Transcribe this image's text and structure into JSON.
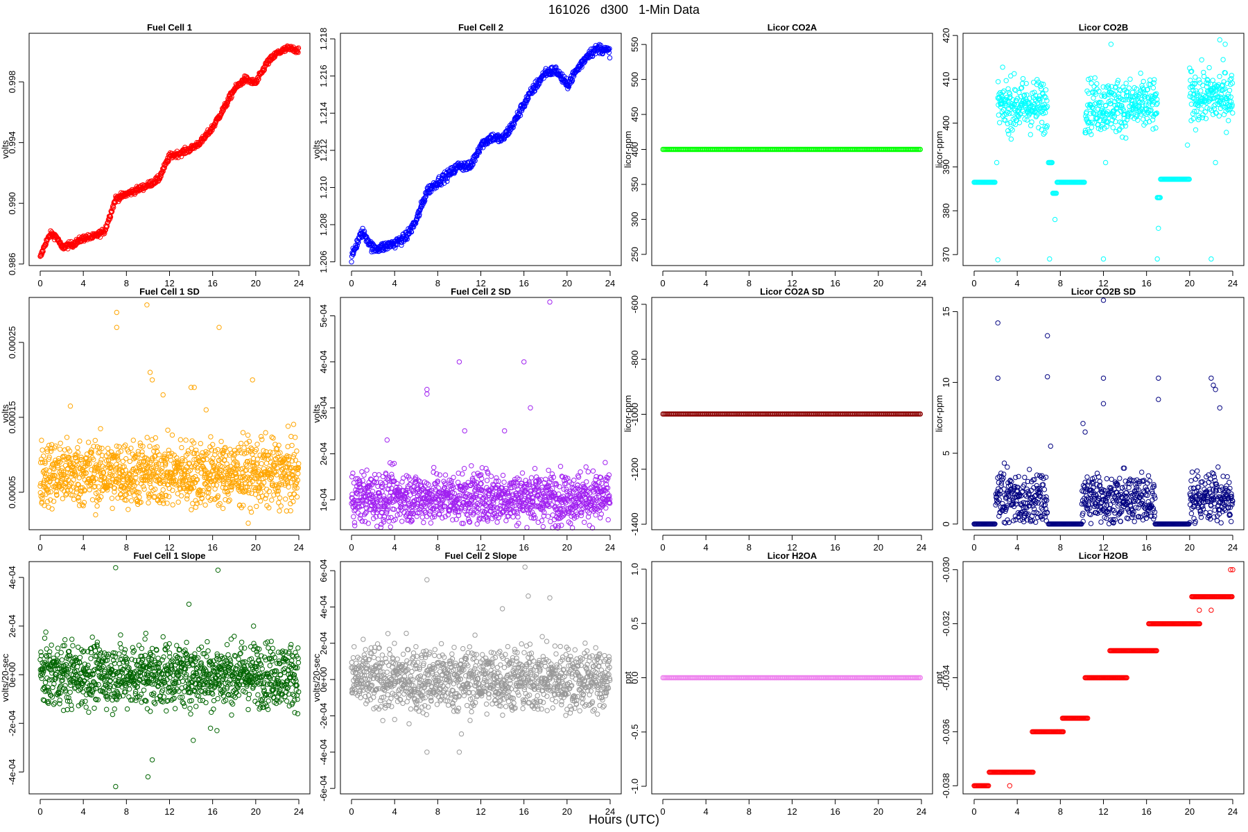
{
  "figure": {
    "title": "161026   d300   1-Min Data",
    "xlabel": "Hours (UTC)"
  },
  "chart_data": [
    {
      "type": "scatter",
      "title": "Fuel Cell 1",
      "ylabel": "volts",
      "color": "#ff0000",
      "marker": "circle-open",
      "xlim": [
        0,
        24
      ],
      "xticks": [
        0,
        4,
        8,
        12,
        16,
        20,
        24
      ],
      "ylim": [
        0.9859,
        1.0012
      ],
      "yticks": [
        0.986,
        0.99,
        0.994,
        0.998
      ],
      "ytick_labels": [
        "0.986",
        "0.990",
        "0.994",
        "0.998"
      ],
      "pattern": "trend",
      "trend": [
        [
          0,
          0.9864
        ],
        [
          0.5,
          0.9874
        ],
        [
          1,
          0.988
        ],
        [
          1.5,
          0.9878
        ],
        [
          2,
          0.9871
        ],
        [
          3,
          0.9873
        ],
        [
          4,
          0.9877
        ],
        [
          5,
          0.9878
        ],
        [
          6,
          0.9882
        ],
        [
          7,
          0.9903
        ],
        [
          8,
          0.9906
        ],
        [
          10,
          0.9912
        ],
        [
          11,
          0.9916
        ],
        [
          12,
          0.9931
        ],
        [
          13,
          0.9933
        ],
        [
          14,
          0.9936
        ],
        [
          15,
          0.9941
        ],
        [
          16,
          0.995
        ],
        [
          17,
          0.9962
        ],
        [
          18,
          0.9975
        ],
        [
          19,
          0.9982
        ],
        [
          20,
          0.9979
        ],
        [
          21,
          0.9992
        ],
        [
          22,
          0.9999
        ],
        [
          23,
          1.0002
        ],
        [
          24,
          1.0001
        ]
      ],
      "noise": 0.0002
    },
    {
      "type": "scatter",
      "title": "Fuel Cell 2",
      "ylabel": "volts",
      "color": "#0000ff",
      "marker": "circle-open",
      "xlim": [
        0,
        24
      ],
      "xticks": [
        0,
        4,
        8,
        12,
        16,
        20,
        24
      ],
      "ylim": [
        1.2058,
        1.2183
      ],
      "yticks": [
        1.206,
        1.208,
        1.21,
        1.212,
        1.214,
        1.216,
        1.218
      ],
      "ytick_labels": [
        "1.206",
        "1.208",
        "1.210",
        "1.212",
        "1.214",
        "1.216",
        "1.218"
      ],
      "pattern": "trend",
      "trend": [
        [
          0,
          1.2062
        ],
        [
          0.5,
          1.207
        ],
        [
          1,
          1.2076
        ],
        [
          1.5,
          1.2072
        ],
        [
          2,
          1.2067
        ],
        [
          3,
          1.2068
        ],
        [
          4,
          1.207
        ],
        [
          5,
          1.2073
        ],
        [
          6,
          1.2082
        ],
        [
          7,
          1.2098
        ],
        [
          8,
          1.2103
        ],
        [
          9,
          1.2107
        ],
        [
          10,
          1.2112
        ],
        [
          11,
          1.2111
        ],
        [
          12,
          1.2123
        ],
        [
          13,
          1.2127
        ],
        [
          14,
          1.2126
        ],
        [
          15,
          1.2134
        ],
        [
          16,
          1.2145
        ],
        [
          17,
          1.2154
        ],
        [
          18,
          1.2162
        ],
        [
          19,
          1.2163
        ],
        [
          20,
          1.2155
        ],
        [
          21,
          1.2164
        ],
        [
          22,
          1.2172
        ],
        [
          23,
          1.2175
        ],
        [
          24,
          1.2173
        ]
      ],
      "noise": 0.00025
    },
    {
      "type": "scatter",
      "title": "Licor CO2A",
      "ylabel": "licor-ppm",
      "color": "#00ff00",
      "marker": "circle-open",
      "xlim": [
        0,
        24
      ],
      "xticks": [
        0,
        4,
        8,
        12,
        16,
        20,
        24
      ],
      "ylim": [
        234,
        566
      ],
      "yticks": [
        250,
        300,
        350,
        400,
        450,
        500,
        550
      ],
      "ytick_labels": [
        "250",
        "300",
        "350",
        "400",
        "450",
        "500",
        "550"
      ],
      "pattern": "const",
      "value": 400
    },
    {
      "type": "scatter",
      "title": "Licor CO2B",
      "ylabel": "licor-ppm",
      "color": "#00ffff",
      "marker": "circle-open",
      "xlim": [
        0,
        24
      ],
      "xticks": [
        0,
        4,
        8,
        12,
        16,
        20,
        24
      ],
      "ylim": [
        367.5,
        420.5
      ],
      "yticks": [
        370,
        380,
        390,
        400,
        410,
        420
      ],
      "ytick_labels": [
        "370",
        "380",
        "390",
        "400",
        "410",
        "420"
      ],
      "pattern": "bands",
      "noise": 3,
      "bands": [
        [
          0,
          2,
          386.5,
          0
        ],
        [
          2.2,
          6.8,
          404,
          3
        ],
        [
          6.9,
          7.3,
          391,
          0
        ],
        [
          7.3,
          7.7,
          384,
          0
        ],
        [
          7.7,
          10.3,
          386.5,
          0
        ],
        [
          10.3,
          17,
          404,
          3.5
        ],
        [
          17,
          17.3,
          383,
          0
        ],
        [
          17.3,
          20,
          387.2,
          0
        ],
        [
          20,
          24,
          406,
          3
        ]
      ],
      "outliers": [
        [
          2.2,
          368.8
        ],
        [
          7,
          369
        ],
        [
          12,
          369
        ],
        [
          17,
          369
        ],
        [
          22,
          369
        ],
        [
          12.7,
          418
        ],
        [
          22.8,
          419
        ],
        [
          23.3,
          418
        ],
        [
          7.5,
          378
        ],
        [
          17.1,
          376
        ],
        [
          2.1,
          391
        ],
        [
          12.2,
          391
        ],
        [
          22.4,
          391
        ],
        [
          19.8,
          395
        ]
      ]
    },
    {
      "type": "scatter",
      "title": "Fuel Cell 1 SD",
      "ylabel": "volts",
      "color": "#ffa500",
      "marker": "circle-open",
      "xlim": [
        0,
        24
      ],
      "xticks": [
        0,
        4,
        8,
        12,
        16,
        20,
        24
      ],
      "ylim": [
        0.0,
        0.00031
      ],
      "yticks": [
        5e-05,
        0.00015,
        0.00025
      ],
      "ytick_labels": [
        "0.00005",
        "0.00015",
        "0.00025"
      ],
      "pattern": "noise",
      "base": 7.5e-05,
      "noise": 2.2e-05,
      "outliers": [
        [
          7.1,
          0.00029
        ],
        [
          7.1,
          0.00027
        ],
        [
          9.9,
          0.0003
        ],
        [
          10.2,
          0.00021
        ],
        [
          10.4,
          0.0002
        ],
        [
          11.4,
          0.00018
        ],
        [
          14,
          0.00019
        ],
        [
          14.3,
          0.00019
        ],
        [
          16.6,
          0.00027
        ],
        [
          19.7,
          0.0002
        ],
        [
          2.8,
          0.000165
        ],
        [
          15.4,
          0.00016
        ]
      ]
    },
    {
      "type": "scatter",
      "title": "Fuel Cell 2 SD",
      "ylabel": "volts",
      "color": "#a020f0",
      "marker": "circle-open",
      "xlim": [
        0,
        24
      ],
      "xticks": [
        0,
        4,
        8,
        12,
        16,
        20,
        24
      ],
      "ylim": [
        3.5e-05,
        0.00054
      ],
      "yticks": [
        0.0001,
        0.0002,
        0.0003,
        0.0004,
        0.0005
      ],
      "ytick_labels": [
        "1e-04",
        "2e-04",
        "3e-04",
        "4e-04",
        "5e-04"
      ],
      "pattern": "noise",
      "base": 0.000105,
      "noise": 2.8e-05,
      "outliers": [
        [
          18.4,
          0.00053
        ],
        [
          10,
          0.0004
        ],
        [
          16,
          0.0004
        ],
        [
          7,
          0.00034
        ],
        [
          7,
          0.00033
        ],
        [
          16.6,
          0.0003
        ],
        [
          10.5,
          0.00025
        ],
        [
          14.2,
          0.00025
        ],
        [
          3.3,
          0.00023
        ]
      ]
    },
    {
      "type": "scatter",
      "title": "Licor CO2A SD",
      "ylabel": "licor-ppm",
      "color": "#8b0000",
      "marker": "circle-open",
      "xlim": [
        0,
        24
      ],
      "xticks": [
        0,
        4,
        8,
        12,
        16,
        20,
        24
      ],
      "ylim": [
        -1420,
        -575
      ],
      "yticks": [
        -1400,
        -1200,
        -1000,
        -800,
        -600
      ],
      "ytick_labels": [
        "-1400",
        "-1200",
        "-1000",
        "-800",
        "-600"
      ],
      "pattern": "const",
      "value": -999
    },
    {
      "type": "scatter",
      "title": "Licor CO2B SD",
      "ylabel": "licor-ppm",
      "color": "#000080",
      "marker": "circle-open",
      "xlim": [
        0,
        24
      ],
      "xticks": [
        0,
        4,
        8,
        12,
        16,
        20,
        24
      ],
      "ylim": [
        -0.4,
        16
      ],
      "yticks": [
        0,
        5,
        10,
        15
      ],
      "ytick_labels": [
        "0",
        "5",
        "10",
        "15"
      ],
      "pattern": "bands",
      "noise": 0.8,
      "bands": [
        [
          0,
          2,
          0,
          0
        ],
        [
          2,
          6.8,
          1.8,
          1
        ],
        [
          6.9,
          10,
          0,
          0
        ],
        [
          10,
          16.8,
          1.8,
          1
        ],
        [
          16.8,
          20,
          0,
          0
        ],
        [
          20,
          24,
          1.8,
          1
        ]
      ],
      "outliers": [
        [
          2.2,
          14.2
        ],
        [
          2.2,
          10.3
        ],
        [
          6.8,
          13.3
        ],
        [
          6.8,
          10.4
        ],
        [
          12,
          15.8
        ],
        [
          12,
          10.3
        ],
        [
          12,
          8.5
        ],
        [
          17.1,
          10.3
        ],
        [
          17.1,
          8.8
        ],
        [
          22,
          10.3
        ],
        [
          22.2,
          9.8
        ],
        [
          22.4,
          9.5
        ],
        [
          22.8,
          8.2
        ],
        [
          10.1,
          7.1
        ],
        [
          10.3,
          6.5
        ],
        [
          7.1,
          5.5
        ],
        [
          2.8,
          4.3
        ]
      ]
    },
    {
      "type": "scatter",
      "title": "Fuel Cell 1 Slope",
      "ylabel": "volts/20-sec",
      "color": "#006400",
      "marker": "circle-open",
      "xlim": [
        0,
        24
      ],
      "xticks": [
        0,
        4,
        8,
        12,
        16,
        20,
        24
      ],
      "ylim": [
        -0.00049,
        0.000465
      ],
      "yticks": [
        -0.0004,
        -0.0002,
        0,
        0.0002,
        0.0004
      ],
      "ytick_labels": [
        "-4e-04",
        "-2e-04",
        "0e+00",
        "2e-04",
        "4e-04"
      ],
      "pattern": "noise",
      "base": 0.0,
      "noise": 6.5e-05,
      "outliers": [
        [
          7,
          0.00044
        ],
        [
          16.5,
          0.00043
        ],
        [
          7,
          -0.00046
        ],
        [
          10,
          -0.00042
        ],
        [
          10.4,
          -0.00035
        ],
        [
          13.8,
          0.00029
        ],
        [
          14.2,
          -0.00027
        ],
        [
          19.8,
          0.0002
        ],
        [
          9.8,
          0.00017
        ],
        [
          15.8,
          -0.00022
        ],
        [
          16.4,
          -0.00023
        ]
      ]
    },
    {
      "type": "scatter",
      "title": "Fuel Cell 2 Slope",
      "ylabel": "volts/20-sec",
      "color": "#999999",
      "marker": "circle-open",
      "xlim": [
        0,
        24
      ],
      "xticks": [
        0,
        4,
        8,
        12,
        16,
        20,
        24
      ],
      "ylim": [
        -0.00063,
        0.00065
      ],
      "yticks": [
        -0.0006,
        -0.0004,
        -0.0002,
        0,
        0.0002,
        0.0004,
        0.0006
      ],
      "ytick_labels": [
        "-6e-04",
        "-4e-04",
        "-2e-04",
        "0e+00",
        "2e-04",
        "4e-04",
        "6e-04"
      ],
      "pattern": "noise",
      "base": 0.0,
      "noise": 9e-05,
      "outliers": [
        [
          16.1,
          0.00062
        ],
        [
          7,
          0.00055
        ],
        [
          16.4,
          0.00046
        ],
        [
          18.4,
          0.00045
        ],
        [
          14,
          0.00039
        ],
        [
          10.2,
          -0.0003
        ],
        [
          10,
          -0.0004
        ],
        [
          7,
          -0.0004
        ],
        [
          4,
          -0.00022
        ]
      ]
    },
    {
      "type": "scatter",
      "title": "Licor H2OA",
      "ylabel": "ppt",
      "color": "#ee82ee",
      "marker": "circle-open",
      "xlim": [
        0,
        24
      ],
      "xticks": [
        0,
        4,
        8,
        12,
        16,
        20,
        24
      ],
      "ylim": [
        -1.07,
        1.07
      ],
      "yticks": [
        -1.0,
        -0.5,
        0.0,
        0.5,
        1.0
      ],
      "ytick_labels": [
        "-1.0",
        "-0.5",
        "0.0",
        "0.5",
        "1.0"
      ],
      "pattern": "const",
      "value": 0
    },
    {
      "type": "scatter",
      "title": "Licor H2OB",
      "ylabel": "ppt",
      "color": "#ff0000",
      "marker": "circle-open",
      "xlim": [
        0,
        24
      ],
      "xticks": [
        0,
        4,
        8,
        12,
        16,
        20,
        24
      ],
      "ylim": [
        -0.0383,
        -0.0297
      ],
      "yticks": [
        -0.038,
        -0.036,
        -0.034,
        -0.032,
        -0.03
      ],
      "ytick_labels": [
        "-0.038",
        "-0.036",
        "-0.034",
        "-0.032",
        "-0.030"
      ],
      "pattern": "steps",
      "steps": [
        [
          0,
          1.4,
          -0.038
        ],
        [
          1.4,
          5.5,
          -0.0375
        ],
        [
          5.4,
          8.3,
          -0.036
        ],
        [
          8.2,
          10.6,
          -0.0355
        ],
        [
          10.3,
          14.2,
          -0.034
        ],
        [
          12.6,
          17,
          -0.033
        ],
        [
          16.2,
          21,
          -0.032
        ],
        [
          20.2,
          24,
          -0.031
        ]
      ],
      "outliers": [
        [
          3.3,
          -0.038
        ],
        [
          23.8,
          -0.03
        ],
        [
          24,
          -0.03
        ],
        [
          20.9,
          -0.0315
        ],
        [
          22,
          -0.0315
        ]
      ]
    }
  ]
}
